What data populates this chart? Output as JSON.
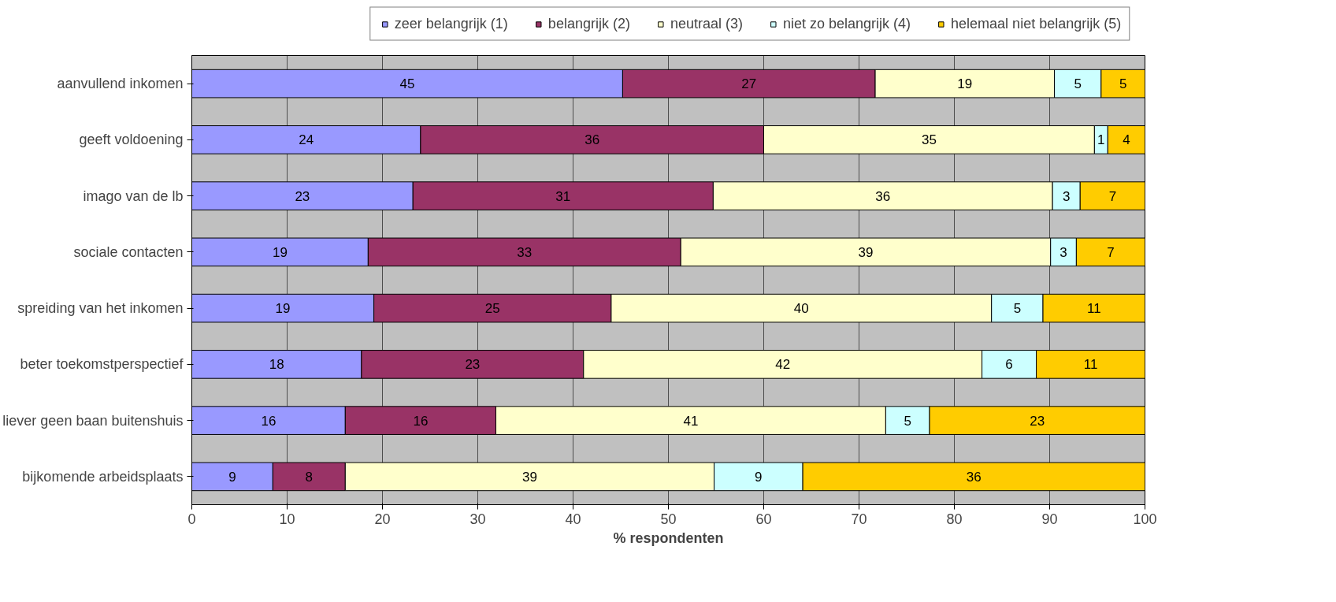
{
  "chart_data": {
    "type": "bar",
    "orientation": "horizontal",
    "stacked": true,
    "xlabel": "% respondenten",
    "categories": [
      "aanvullend inkomen",
      "geeft voldoening",
      "imago van de lb",
      "sociale contacten",
      "spreiding van het inkomen",
      "beter toekomstperspectief",
      "liever geen baan buitenshuis",
      "bijkomende arbeidsplaats"
    ],
    "series": [
      {
        "name": "zeer belangrijk (1)",
        "color": "#9999ff",
        "values": [
          45.2,
          24.0,
          23.2,
          18.5,
          19.1,
          17.8,
          16.1,
          8.5
        ],
        "value_labels": [
          "45",
          "24",
          "23",
          "19",
          "19",
          "18",
          "16",
          "9"
        ]
      },
      {
        "name": "belangrijk (2)",
        "color": "#993366",
        "values": [
          26.5,
          36.0,
          31.5,
          32.8,
          24.9,
          23.3,
          15.8,
          7.6
        ],
        "value_labels": [
          "27",
          "36",
          "31",
          "33",
          "25",
          "23",
          "16",
          "8"
        ]
      },
      {
        "name": "neutraal (3)",
        "color": "#ffffcc",
        "values": [
          18.8,
          34.7,
          35.6,
          38.8,
          39.9,
          41.8,
          40.9,
          38.7
        ],
        "value_labels": [
          "19",
          "35",
          "36",
          "39",
          "40",
          "42",
          "41",
          "39"
        ]
      },
      {
        "name": "niet zo belangrijk (4)",
        "color": "#ccffff",
        "values": [
          4.9,
          1.4,
          2.9,
          2.7,
          5.4,
          5.7,
          4.6,
          9.3
        ],
        "value_labels": [
          "5",
          "1",
          "3",
          "3",
          "5",
          "6",
          "5",
          "9"
        ]
      },
      {
        "name": "helemaal niet belangrijk (5)",
        "color": "#ffcc00",
        "values": [
          4.6,
          3.9,
          6.8,
          7.2,
          10.7,
          11.4,
          22.6,
          35.9
        ],
        "value_labels": [
          "5",
          "4",
          "7",
          "7",
          "11",
          "11",
          "23",
          "36"
        ]
      }
    ],
    "xlim": [
      0,
      100
    ],
    "xticks": [
      0,
      10,
      20,
      30,
      40,
      50,
      60,
      70,
      80,
      90,
      100
    ],
    "grid": "x",
    "legend": "top"
  }
}
